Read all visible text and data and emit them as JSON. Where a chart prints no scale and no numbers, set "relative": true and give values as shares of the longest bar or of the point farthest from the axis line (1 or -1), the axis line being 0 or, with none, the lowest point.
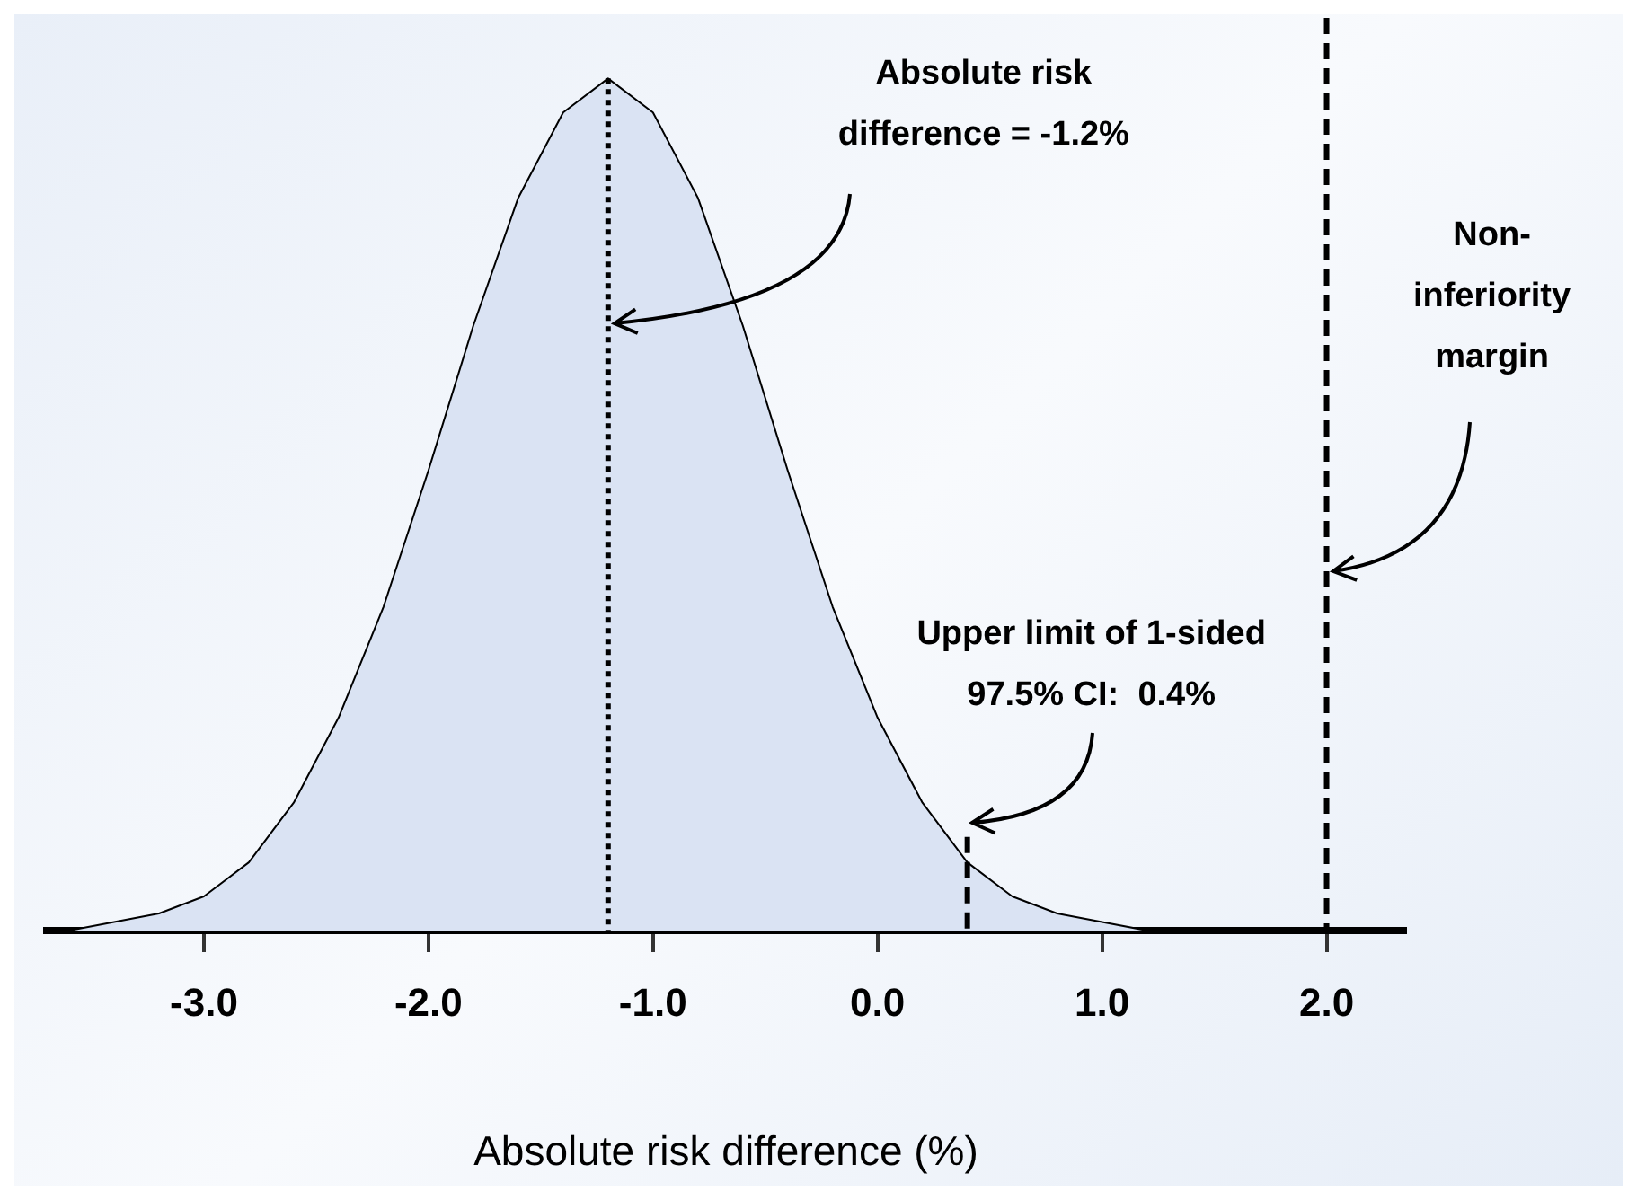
{
  "chart_data": {
    "type": "area",
    "relative": true,
    "xlabel": "Absolute risk difference (%)",
    "x": [
      -3.6,
      -3.4,
      -3.2,
      -3.0,
      -2.8,
      -2.6,
      -2.4,
      -2.2,
      -2.0,
      -1.8,
      -1.6,
      -1.4,
      -1.2,
      -1.0,
      -0.8,
      -0.6,
      -0.4,
      -0.2,
      0.0,
      0.2,
      0.4,
      0.6,
      0.8,
      1.0,
      1.2,
      2.3
    ],
    "series": [
      {
        "color": "#dae3f3",
        "values": [
          0.0,
          0.01,
          0.02,
          0.04,
          0.08,
          0.15,
          0.25,
          0.38,
          0.54,
          0.71,
          0.86,
          0.96,
          1.0,
          0.96,
          0.86,
          0.71,
          0.54,
          0.38,
          0.25,
          0.15,
          0.08,
          0.04,
          0.02,
          0.01,
          0.0,
          0.0
        ]
      }
    ],
    "xlim": [
      -3.7,
      2.35
    ],
    "xticks": [
      {
        "value": -3,
        "label": "-3.0"
      },
      {
        "value": -2,
        "label": "-2.0"
      },
      {
        "value": -1,
        "label": "-1.0"
      },
      {
        "value": 0,
        "label": "0.0"
      },
      {
        "value": 1,
        "label": "1.0"
      },
      {
        "value": 2,
        "label": "2.0"
      }
    ],
    "ref_lines": [
      {
        "axis": "x",
        "value": -1.2,
        "label": "Absolute risk\ndifference = -1.2%",
        "line_style": "dotted"
      },
      {
        "axis": "x",
        "value": 0.4,
        "label": "Upper limit of 1-sided\n97.5% CI:  0.4%",
        "line_style": "dashed"
      },
      {
        "axis": "x",
        "value": 2.0,
        "label": "Non-\ninferiority\nmargin",
        "line_style": "dashed"
      }
    ]
  }
}
